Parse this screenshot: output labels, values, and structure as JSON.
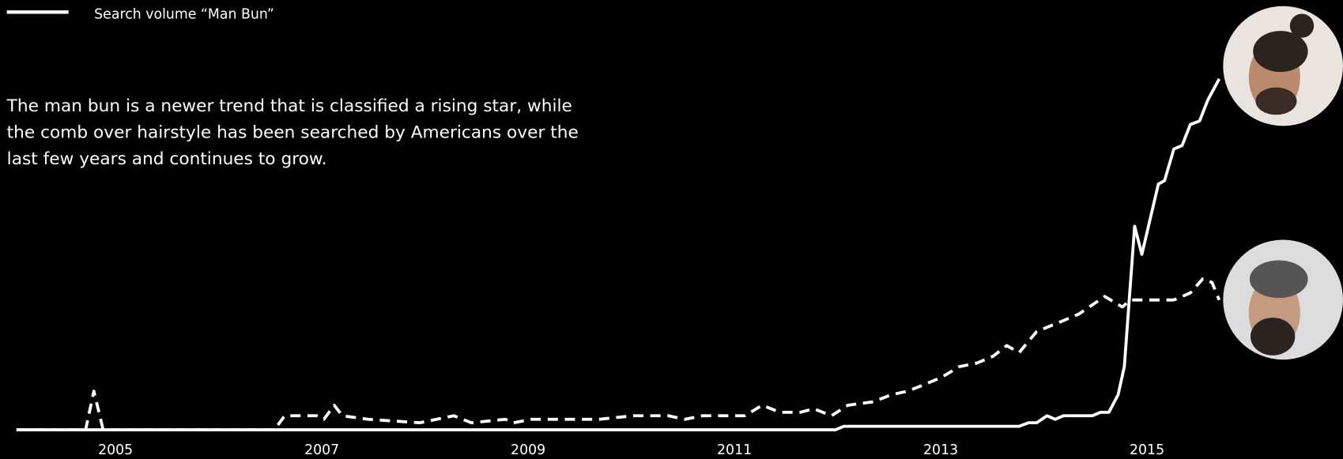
{
  "chart_data": {
    "type": "line",
    "legend_label": "Search volume “Man Bun”",
    "annotation": "The man bun is a newer trend that is classified a rising star, while the comb over hairstyle has been searched by Americans over the last few years and continues to grow.",
    "xlim": [
      2003.88,
      2016.9
    ],
    "ylim": [
      0,
      100
    ],
    "xticks": [
      2005,
      2007,
      2009,
      2011,
      2013,
      2015
    ],
    "grid": false,
    "series": [
      {
        "name": "Search volume “Man Bun”",
        "color": "#ffffff",
        "line_style": "solid",
        "x": [
          2004.04,
          2011.98,
          2012.06,
          2013.76,
          2013.85,
          2013.93,
          2014.03,
          2014.11,
          2014.19,
          2014.47,
          2014.55,
          2014.63,
          2014.72,
          2014.78,
          2014.88,
          2014.95,
          2015.11,
          2015.17,
          2015.26,
          2015.34,
          2015.42,
          2015.51,
          2015.59,
          2015.7
        ],
        "values": [
          0,
          0,
          1,
          1,
          2,
          2,
          4,
          3,
          4,
          4,
          5,
          5,
          10,
          18,
          58,
          50,
          70,
          71,
          80,
          81,
          87,
          88,
          94,
          100
        ]
      },
      {
        "color": "#ffffff",
        "line_style": "dashed",
        "x": [
          2004.04,
          2004.71,
          2004.79,
          2004.88,
          2006.54,
          2006.64,
          2006.95,
          2007.02,
          2007.12,
          2007.2,
          2007.45,
          2007.95,
          2008.28,
          2008.45,
          2008.78,
          2008.86,
          2009.03,
          2009.69,
          2010.02,
          2010.36,
          2010.52,
          2010.69,
          2011.1,
          2011.27,
          2011.44,
          2011.64,
          2011.77,
          2011.94,
          2012.1,
          2012.35,
          2012.52,
          2012.68,
          2012.85,
          2013.01,
          2013.18,
          2013.35,
          2013.51,
          2013.64,
          2013.76,
          2013.93,
          2014.18,
          2014.34,
          2014.59,
          2014.76,
          2014.84,
          2015.26,
          2015.42,
          2015.54,
          2015.63,
          2015.7
        ],
        "values": [
          0,
          0,
          11,
          0,
          0,
          4,
          4,
          3,
          7,
          4,
          3,
          2,
          4,
          2,
          3,
          2,
          3,
          3,
          4,
          4,
          3,
          4,
          4,
          7,
          5,
          5,
          6,
          4,
          7,
          8,
          10,
          11,
          13,
          15,
          18,
          19,
          21,
          24,
          22,
          28,
          31,
          33,
          38,
          35,
          37,
          37,
          39,
          43,
          42,
          37
        ]
      }
    ]
  }
}
